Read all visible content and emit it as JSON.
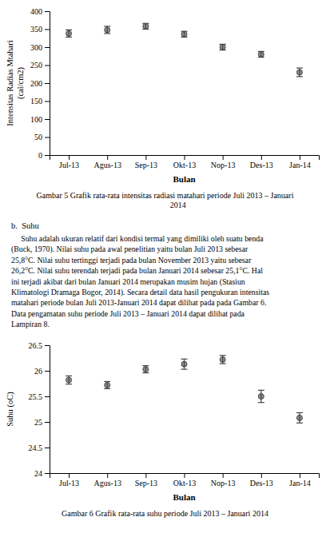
{
  "chart_data": [
    {
      "type": "errorbar",
      "title": "Gambar 5 Grafik rata-rata intensitas radiasi matahari periode Juli 2013 – Januari\n             2014",
      "x_label": "Bulan",
      "y_label": "Intensitas Radias Mtahari\n(cal/cm2)",
      "categories": [
        "Jul-13",
        "Agus-13",
        "Sep-13",
        "Okt-13",
        "Nop-13",
        "Des-13",
        "Jan-14"
      ],
      "values": [
        338,
        348,
        358,
        336,
        300,
        280,
        230
      ],
      "errors": [
        10,
        10,
        8,
        8,
        8,
        8,
        12
      ],
      "color": "#444444",
      "ylim": [
        0,
        400
      ],
      "yticks": [
        0,
        50,
        100,
        150,
        200,
        250,
        300,
        350,
        400
      ],
      "grid": false
    },
    {
      "type": "errorbar",
      "title": "Gambar 6 Grafik rata-rata suhu periode Juli 2013 – Januari 2014",
      "x_label": "Bulan",
      "y_label": "Suhu (oC)",
      "categories": [
        "Jul-13",
        "Agus-13",
        "Sep-13",
        "Okt-13",
        "Nop-13",
        "Des-13",
        "Jan-14"
      ],
      "values": [
        25.82,
        25.72,
        26.03,
        26.13,
        26.22,
        25.5,
        25.08
      ],
      "errors": [
        0.08,
        0.07,
        0.07,
        0.1,
        0.08,
        0.12,
        0.1
      ],
      "color": "#444444",
      "ylim": [
        24,
        26.5
      ],
      "yticks": [
        24,
        24.5,
        25,
        25.5,
        26,
        26.5
      ],
      "grid": false
    }
  ],
  "paragraph_heading": "b.  Suhu",
  "paragraph_text": "     Suhu adalah ukuran relatif dari kondisi termal yang dimiliki oleh suatu benda\n(Buck, 1970). Nilai suhu pada awal penelitian yaitu bulan Juli 2013 sebesar\n25,8°C. Nilai suhu tertinggi terjadi pada bulan November 2013 yaitu sebesar\n26,2°C. Nilai suhu terendah terjadi pada bulan Januari 2014 sebesar 25,1°C. Hal\nini terjadi akibat dari bulan Januari 2014 merupakan musim hujan (Stasiun\nKlimatologi Dramaga Bogor, 2014). Secara detail data hasil pengukuran intensitas\nmatahari periode bulan Juli 2013-Januari 2014 dapat dilihat pada pada Gambar 6.\nData pengamatan suhu periode Juli 2013 – Januari 2014 dapat dilihat pada\nLampiran 8."
}
